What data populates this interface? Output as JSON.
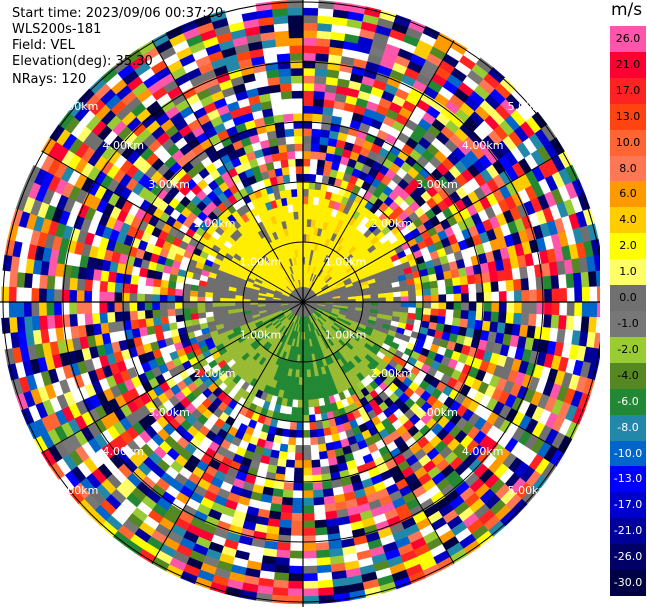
{
  "header": {
    "start_time": "Start time: 2023/09/06 00:37:20",
    "instrument": "WLS200s-181",
    "field": "Field: VEL",
    "elevation": "Elevation(deg): 35.30",
    "nrays": "NRays: 120"
  },
  "colorbar": {
    "unit": "m/s",
    "entries": [
      {
        "label": "26.0",
        "color": "#ff55aa"
      },
      {
        "label": "21.0",
        "color": "#ff0033"
      },
      {
        "label": "17.0",
        "color": "#ff2222"
      },
      {
        "label": "13.0",
        "color": "#ff4411"
      },
      {
        "label": "10.0",
        "color": "#ff6633"
      },
      {
        "label": "8.0",
        "color": "#ff7755"
      },
      {
        "label": "6.0",
        "color": "#ff9900"
      },
      {
        "label": "4.0",
        "color": "#ffcc00"
      },
      {
        "label": "2.0",
        "color": "#ffff00"
      },
      {
        "label": "1.0",
        "color": "#ffff66"
      },
      {
        "label": "0.0",
        "color": "#707070"
      },
      {
        "label": "-1.0",
        "color": "#777777"
      },
      {
        "label": "-2.0",
        "color": "#99cc33"
      },
      {
        "label": "-4.0",
        "color": "#558822"
      },
      {
        "label": "-6.0",
        "color": "#228833"
      },
      {
        "label": "-8.0",
        "color": "#2288aa"
      },
      {
        "label": "-10.0",
        "color": "#0066cc"
      },
      {
        "label": "-13.0",
        "color": "#0000ff"
      },
      {
        "label": "-17.0",
        "color": "#0000cc"
      },
      {
        "label": "-21.0",
        "color": "#000099"
      },
      {
        "label": "-26.0",
        "color": "#000066"
      },
      {
        "label": "-30.0",
        "color": "#000044"
      }
    ]
  },
  "plot": {
    "ring_labels": [
      "1.00km",
      "2.00km",
      "3.00km",
      "4.00km",
      "5.00km"
    ],
    "gray_color": "#6e6e6e",
    "yellow_color": "#ffee00",
    "green_light_color": "#99bb33",
    "green_dark_color": "#228833"
  }
}
